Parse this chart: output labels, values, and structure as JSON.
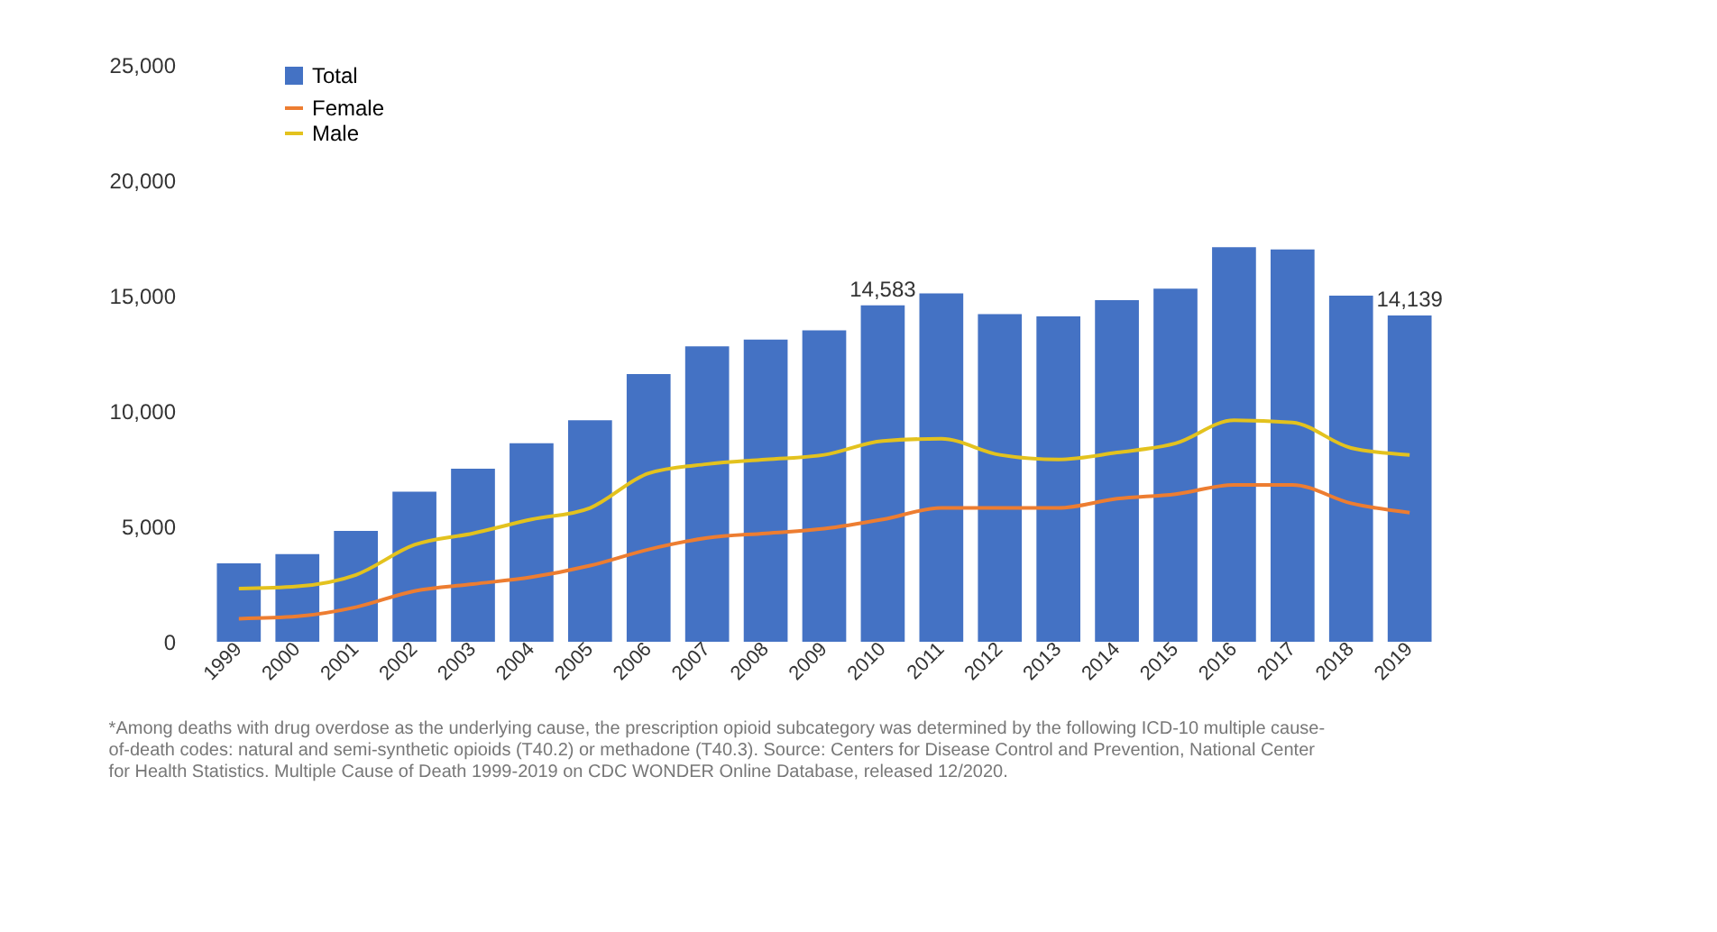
{
  "chart_data": {
    "type": "bar",
    "categories": [
      "1999",
      "2000",
      "2001",
      "2002",
      "2003",
      "2004",
      "2005",
      "2006",
      "2007",
      "2008",
      "2009",
      "2010",
      "2011",
      "2012",
      "2013",
      "2014",
      "2015",
      "2016",
      "2017",
      "2018",
      "2019"
    ],
    "series": [
      {
        "name": "Total",
        "color": "#4472c4",
        "values": [
          3400,
          3800,
          4800,
          6500,
          7500,
          8600,
          9600,
          11600,
          12800,
          13100,
          13500,
          14583,
          15100,
          14200,
          14100,
          14800,
          15300,
          17100,
          17000,
          15000,
          14139
        ],
        "value_labels": [
          null,
          null,
          null,
          null,
          null,
          null,
          null,
          null,
          null,
          null,
          null,
          "14,583",
          null,
          null,
          null,
          null,
          null,
          null,
          null,
          null,
          "14,139"
        ]
      },
      {
        "name": "Female",
        "type": "line",
        "color": "#ed7d31",
        "values": [
          1000,
          1100,
          1500,
          2200,
          2500,
          2800,
          3300,
          4000,
          4500,
          4700,
          4900,
          5300,
          5800,
          5800,
          5800,
          6200,
          6400,
          6800,
          6800,
          6000,
          5600
        ]
      },
      {
        "name": "Male",
        "type": "line",
        "color": "#e3c21e",
        "values": [
          2300,
          2400,
          2900,
          4200,
          4700,
          5300,
          5800,
          7300,
          7700,
          7900,
          8100,
          8700,
          8800,
          8100,
          7900,
          8200,
          8600,
          9600,
          9500,
          8400,
          8100
        ]
      }
    ],
    "ylim": [
      0,
      25000
    ],
    "yticks": [
      {
        "value": 0,
        "label": "0"
      },
      {
        "value": 5000,
        "label": "5,000"
      },
      {
        "value": 10000,
        "label": "10,000"
      },
      {
        "value": 15000,
        "label": "15,000"
      },
      {
        "value": 20000,
        "label": "20,000"
      },
      {
        "value": 25000,
        "label": "25,000"
      }
    ],
    "grid": false,
    "legend": "top left",
    "line_style": "solid",
    "annotations": [
      "*Among deaths with drug overdose as the underlying cause, the prescription opioid subcategory was determined by the following ICD-10 multiple cause-of-death codes: natural and semi-synthetic opioids (T40.2) or methadone (T40.3). Source: Centers for Disease Control and Prevention, National Center for Health Statistics. Multiple Cause of Death 1999-2019 on CDC WONDER Online Database, released 12/2020."
    ]
  }
}
